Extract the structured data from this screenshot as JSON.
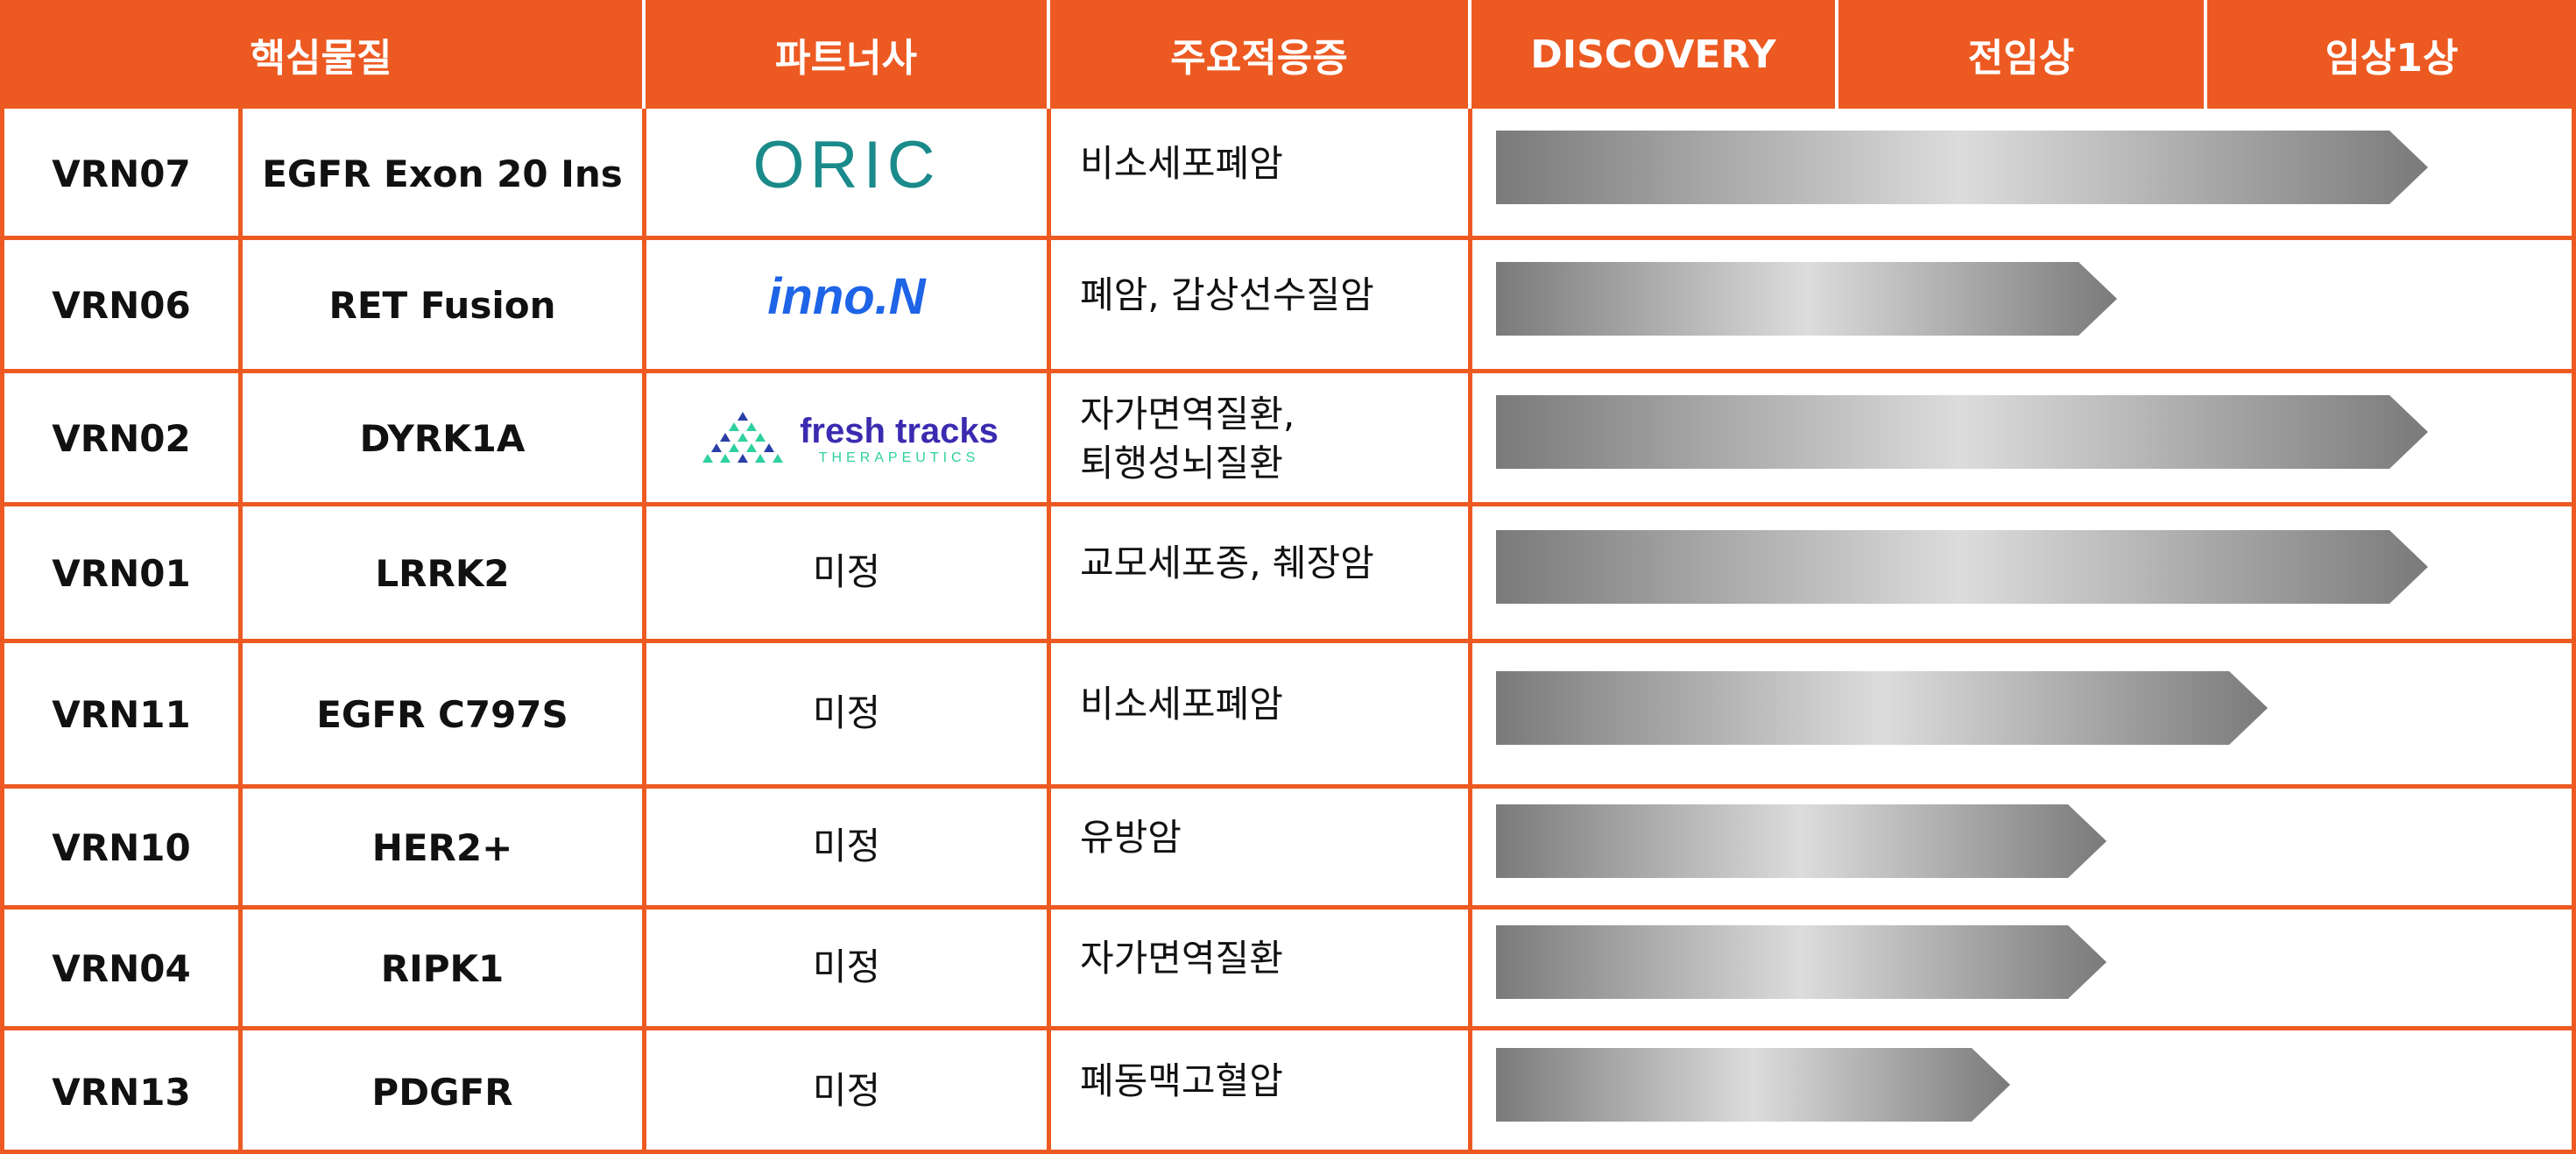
{
  "header": {
    "col_compound": "핵심물질",
    "col_partner": "파트너사",
    "col_indication": "주요적응증",
    "col_discovery": "DISCOVERY",
    "col_preclinical": "전임상",
    "col_phase1": "임상1상"
  },
  "colors": {
    "accent": "#ec5a22",
    "arrow_dark": "#7a7a7a",
    "arrow_light": "#dcdcdc",
    "oric_teal": "#1a8a8a",
    "inno_blue": "#1e64e6",
    "freshtracks_purple": "#3b2bb0",
    "freshtracks_teal": "#2fd0a0"
  },
  "rows": [
    {
      "code": "VRN07",
      "target": "EGFR Exon 20 Ins",
      "partner_logo": "oric-logo",
      "partner_text": "ORIC",
      "indication": [
        "비소세포폐암"
      ],
      "progress": 0.87
    },
    {
      "code": "VRN06",
      "target": "RET Fusion",
      "partner_logo": "inno-n-logo",
      "partner_text": "inno.N",
      "indication": [
        "폐암, 갑상선수질암"
      ],
      "progress": 0.58
    },
    {
      "code": "VRN02",
      "target": "DYRK1A",
      "partner_logo": "fresh-tracks-logo",
      "partner_text": "fresh tracks",
      "partner_subtext": "THERAPEUTICS",
      "indication": [
        "자가면역질환,",
        "퇴행성뇌질환"
      ],
      "progress": 0.87
    },
    {
      "code": "VRN01",
      "target": "LRRK2",
      "partner_logo": "",
      "partner_text": "미정",
      "indication": [
        "교모세포종, 췌장암"
      ],
      "progress": 0.87
    },
    {
      "code": "VRN11",
      "target": "EGFR C797S",
      "partner_logo": "",
      "partner_text": "미정",
      "indication": [
        "비소세포폐암"
      ],
      "progress": 0.72
    },
    {
      "code": "VRN10",
      "target": "HER2+",
      "partner_logo": "",
      "partner_text": "미정",
      "indication": [
        "유방암"
      ],
      "progress": 0.57
    },
    {
      "code": "VRN04",
      "target": "RIPK1",
      "partner_logo": "",
      "partner_text": "미정",
      "indication": [
        "자가면역질환"
      ],
      "progress": 0.57
    },
    {
      "code": "VRN13",
      "target": "PDGFR",
      "partner_logo": "",
      "partner_text": "미정",
      "indication": [
        "폐동맥고혈압"
      ],
      "progress": 0.48
    }
  ]
}
